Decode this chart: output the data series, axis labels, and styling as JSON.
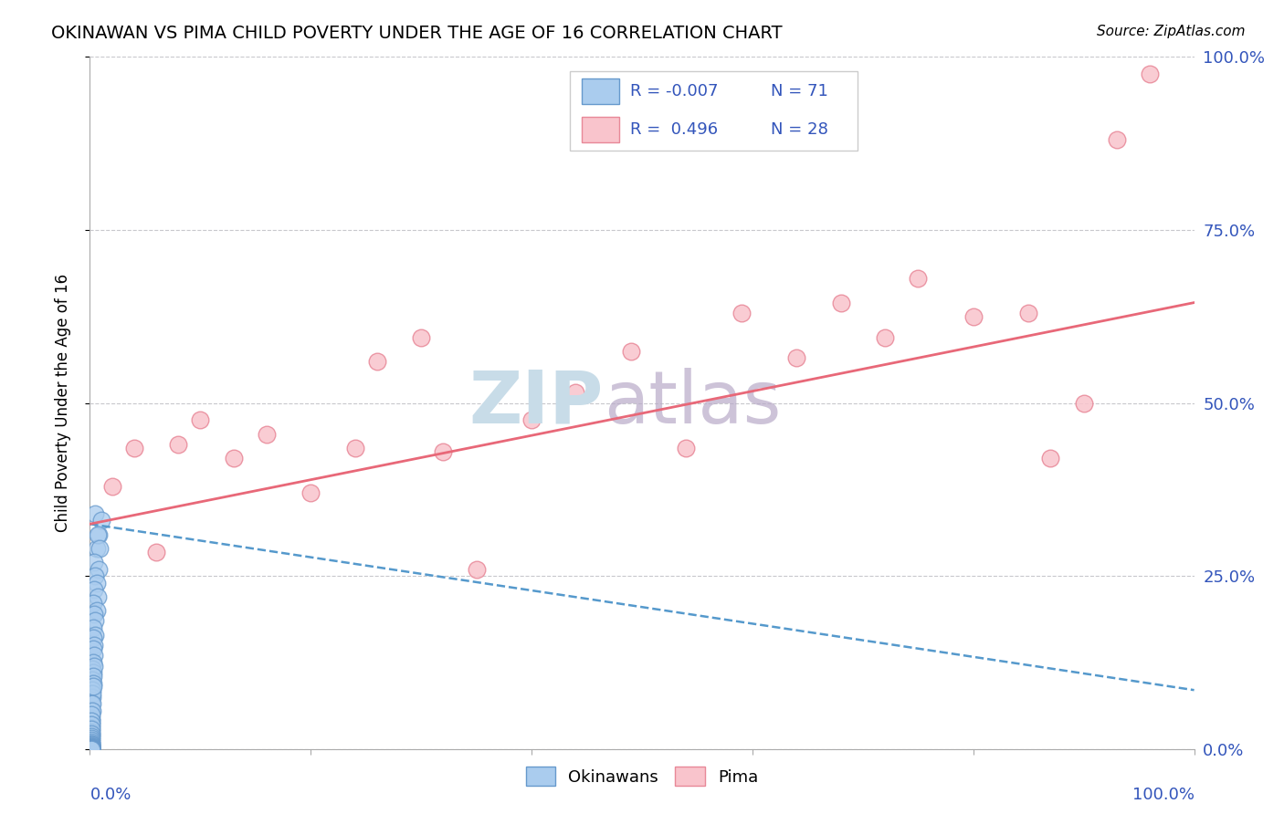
{
  "title": "OKINAWAN VS PIMA CHILD POVERTY UNDER THE AGE OF 16 CORRELATION CHART",
  "source_text": "Source: ZipAtlas.com",
  "ylabel": "Child Poverty Under the Age of 16",
  "y_tick_labels": [
    "0.0%",
    "25.0%",
    "50.0%",
    "75.0%",
    "100.0%"
  ],
  "y_tick_positions": [
    0,
    0.25,
    0.5,
    0.75,
    1.0
  ],
  "okinawan_color": "#aaccee",
  "okinawan_edge_color": "#6699cc",
  "pima_color": "#f9c4cc",
  "pima_edge_color": "#e88898",
  "regression_okinawan_color": "#5599cc",
  "regression_pima_color": "#e86878",
  "okinawan_R": -0.007,
  "okinawan_N": 71,
  "pima_R": 0.496,
  "pima_N": 28,
  "legend_R_color": "#3355bb",
  "legend_N_color": "#3355bb",
  "legend_label_color": "#000000",
  "watermark_ZIP_color": "#c8dce8",
  "watermark_atlas_color": "#b8aac8",
  "okinawan_x": [
    0.005,
    0.008,
    0.01,
    0.006,
    0.007,
    0.009,
    0.004,
    0.008,
    0.005,
    0.006,
    0.004,
    0.007,
    0.003,
    0.006,
    0.004,
    0.005,
    0.003,
    0.005,
    0.003,
    0.004,
    0.003,
    0.004,
    0.003,
    0.002,
    0.003,
    0.004,
    0.002,
    0.003,
    0.002,
    0.003,
    0.002,
    0.002,
    0.002,
    0.001,
    0.003,
    0.001,
    0.002,
    0.001,
    0.002,
    0.001,
    0.001,
    0.001,
    0.001,
    0.001,
    0.001,
    0.001,
    0.001,
    0.001,
    0.001,
    0.001,
    0.001,
    0.001,
    0.001,
    0.001,
    0.001,
    0.001,
    0.001,
    0.001,
    0.001,
    0.001,
    0.001,
    0.001,
    0.001,
    0.001,
    0.001,
    0.001,
    0.001,
    0.001,
    0.001,
    0.001,
    0.001
  ],
  "okinawan_y": [
    0.34,
    0.31,
    0.33,
    0.29,
    0.31,
    0.29,
    0.27,
    0.26,
    0.25,
    0.24,
    0.23,
    0.22,
    0.21,
    0.2,
    0.195,
    0.185,
    0.175,
    0.165,
    0.16,
    0.15,
    0.145,
    0.135,
    0.125,
    0.115,
    0.11,
    0.12,
    0.1,
    0.105,
    0.09,
    0.095,
    0.085,
    0.075,
    0.08,
    0.065,
    0.09,
    0.055,
    0.065,
    0.045,
    0.055,
    0.04,
    0.05,
    0.035,
    0.04,
    0.03,
    0.035,
    0.025,
    0.028,
    0.02,
    0.022,
    0.018,
    0.015,
    0.013,
    0.01,
    0.008,
    0.007,
    0.006,
    0.005,
    0.004,
    0.003,
    0.002,
    0.002,
    0.001,
    0.001,
    0.001,
    0.001,
    0.0,
    0.0,
    0.0,
    0.0,
    0.0,
    0.0
  ],
  "pima_x": [
    0.02,
    0.04,
    0.06,
    0.08,
    0.1,
    0.13,
    0.16,
    0.2,
    0.24,
    0.26,
    0.3,
    0.32,
    0.35,
    0.4,
    0.44,
    0.49,
    0.54,
    0.59,
    0.64,
    0.68,
    0.72,
    0.75,
    0.8,
    0.85,
    0.87,
    0.9,
    0.93,
    0.96
  ],
  "pima_y": [
    0.38,
    0.435,
    0.285,
    0.44,
    0.475,
    0.42,
    0.455,
    0.37,
    0.435,
    0.56,
    0.595,
    0.43,
    0.26,
    0.475,
    0.515,
    0.575,
    0.435,
    0.63,
    0.565,
    0.645,
    0.595,
    0.68,
    0.625,
    0.63,
    0.42,
    0.5,
    0.88,
    0.975
  ]
}
